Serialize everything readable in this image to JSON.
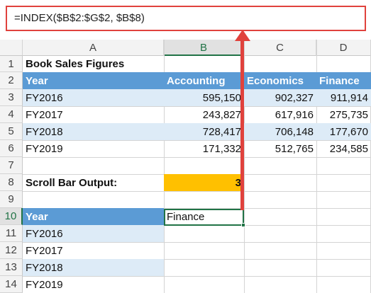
{
  "formula_bar": {
    "formula": "=INDEX($B$2:$G$2, $B$8)"
  },
  "columns": [
    "A",
    "B",
    "C",
    "D"
  ],
  "rows": [
    "1",
    "2",
    "3",
    "4",
    "5",
    "6",
    "7",
    "8",
    "9",
    "10",
    "11",
    "12",
    "13",
    "14"
  ],
  "sheet": {
    "title": "Book Sales Figures",
    "header": {
      "year": "Year",
      "accounting": "Accounting",
      "economics": "Economics",
      "finance": "Finance"
    },
    "data": [
      {
        "year": "FY2016",
        "accounting": "595,150",
        "economics": "902,327",
        "finance": "911,914"
      },
      {
        "year": "FY2017",
        "accounting": "243,827",
        "economics": "617,916",
        "finance": "275,735"
      },
      {
        "year": "FY2018",
        "accounting": "728,417",
        "economics": "706,148",
        "finance": "177,670"
      },
      {
        "year": "FY2019",
        "accounting": "171,332",
        "economics": "512,765",
        "finance": "234,585"
      }
    ],
    "scroll_label": "Scroll Bar Output:",
    "scroll_value": "3",
    "lower_header": "Year",
    "lower_result": "Finance",
    "lower_years": [
      "FY2016",
      "FY2017",
      "FY2018",
      "FY2019"
    ]
  },
  "colors": {
    "accent_arrow": "#e0423d",
    "header_blue": "#5b9bd5",
    "band_blue": "#ddebf7",
    "gold": "#ffc000",
    "excel_green": "#217346"
  }
}
